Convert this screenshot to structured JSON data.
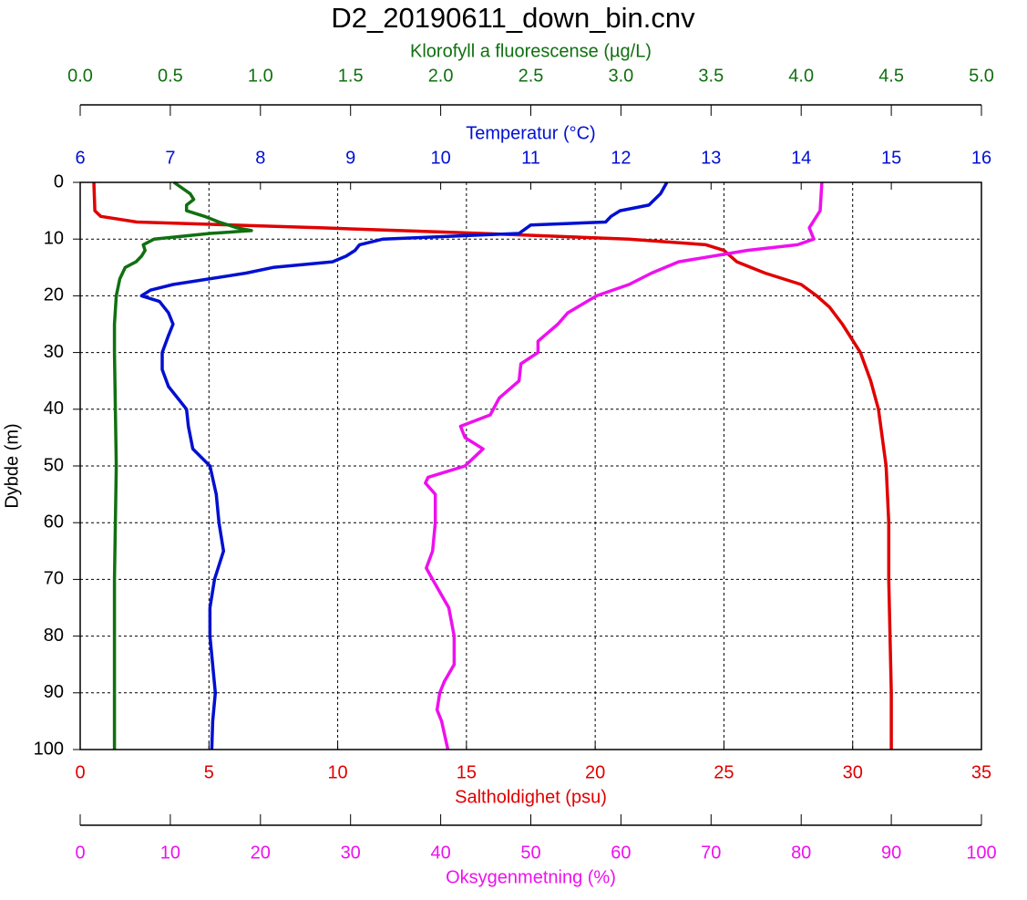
{
  "chart_data": {
    "type": "profile",
    "title": "D2_20190611_down_bin.cnv",
    "y_label": "Dybde (m)",
    "ylim": [
      0,
      100
    ],
    "yticks": [
      0,
      10,
      20,
      30,
      40,
      50,
      60,
      70,
      80,
      90,
      100
    ],
    "y_inverted": true,
    "axes": [
      {
        "label": "Saltholdighet (psu)",
        "color": "#e00000",
        "position": "bottom",
        "grid": true,
        "xlim": [
          0,
          35
        ],
        "xticks": [
          0,
          5,
          10,
          15,
          20,
          25,
          30,
          35
        ],
        "depth": [
          0,
          5,
          6,
          7,
          8,
          9,
          10,
          11,
          12,
          14,
          16,
          18,
          20,
          22,
          25,
          30,
          35,
          40,
          50,
          60,
          70,
          80,
          90,
          100
        ],
        "values": [
          0.53,
          0.57,
          0.8,
          2.2,
          9.3,
          15.6,
          21.3,
          24.3,
          25.0,
          25.5,
          26.6,
          28.0,
          28.6,
          29.1,
          29.6,
          30.3,
          30.7,
          31.0,
          31.3,
          31.4,
          31.4,
          31.45,
          31.5,
          31.5
        ]
      },
      {
        "label": "Oksygenmetning (%)",
        "color": "#ee10ee",
        "position": "bottom",
        "grid": false,
        "xlim": [
          0,
          100
        ],
        "xticks": [
          0,
          10,
          20,
          30,
          40,
          50,
          60,
          70,
          80,
          90,
          100
        ],
        "depth": [
          0,
          5,
          8,
          10,
          11,
          12,
          14,
          16,
          18,
          20,
          23,
          25,
          28,
          30,
          32,
          35,
          38,
          41,
          43,
          45,
          47,
          50,
          52,
          53,
          55,
          60,
          65,
          68,
          70,
          75,
          80,
          85,
          88,
          90,
          93,
          95,
          100
        ],
        "values": [
          82.3,
          82.1,
          80.9,
          81.4,
          79.6,
          74.0,
          66.4,
          63.4,
          60.9,
          57.3,
          54.1,
          53.0,
          50.8,
          50.8,
          48.9,
          48.7,
          46.5,
          45.5,
          42.2,
          42.7,
          44.7,
          42.7,
          38.6,
          38.3,
          39.4,
          39.4,
          39.1,
          38.4,
          39.1,
          40.9,
          41.5,
          41.5,
          40.4,
          39.9,
          39.6,
          40.1,
          40.8
        ]
      },
      {
        "label": "Temperatur (°C)",
        "color": "#0010d0",
        "position": "top",
        "grid": false,
        "xlim": [
          6,
          16
        ],
        "xticks": [
          6,
          7,
          8,
          9,
          10,
          11,
          12,
          13,
          14,
          15,
          16
        ],
        "depth": [
          0,
          2,
          4,
          5,
          6,
          7,
          7.5,
          9,
          10,
          11,
          12,
          13,
          14,
          15,
          16,
          18,
          19,
          20,
          21,
          23,
          25,
          27,
          30,
          33,
          36,
          40,
          43,
          47,
          50,
          55,
          60,
          65,
          70,
          75,
          80,
          90,
          95,
          100
        ],
        "values": [
          12.51,
          12.44,
          12.31,
          11.99,
          11.89,
          11.83,
          11.0,
          10.87,
          9.36,
          9.1,
          9.05,
          8.95,
          8.8,
          8.14,
          7.84,
          7.03,
          6.78,
          6.68,
          6.88,
          6.98,
          7.03,
          6.98,
          6.91,
          6.91,
          6.98,
          7.18,
          7.2,
          7.25,
          7.44,
          7.51,
          7.54,
          7.59,
          7.49,
          7.44,
          7.44,
          7.5,
          7.47,
          7.46
        ]
      },
      {
        "label": "Klorofyll a fluorescense (µg/L)",
        "color": "#107010",
        "position": "top",
        "grid": false,
        "xlim": [
          0,
          5
        ],
        "xticks": [
          {
            "value": 0,
            "label": "0.0"
          },
          0.5,
          {
            "value": 1,
            "label": "1.0"
          },
          1.5,
          {
            "value": 2,
            "label": "2.0"
          },
          2.5,
          {
            "value": 3,
            "label": "3.0"
          },
          3.5,
          {
            "value": 4,
            "label": "4.0"
          },
          4.5,
          {
            "value": 5,
            "label": "5.0"
          }
        ],
        "depth": [
          0,
          2,
          3,
          4,
          5,
          6,
          7,
          8,
          8.5,
          9,
          10,
          11,
          12,
          13,
          14,
          15,
          17,
          20,
          25,
          30,
          50,
          70,
          100
        ],
        "values": [
          0.52,
          0.61,
          0.63,
          0.59,
          0.59,
          0.69,
          0.77,
          0.87,
          0.95,
          0.72,
          0.41,
          0.35,
          0.36,
          0.34,
          0.31,
          0.25,
          0.22,
          0.2,
          0.19,
          0.19,
          0.2,
          0.19,
          0.19
        ]
      }
    ]
  }
}
